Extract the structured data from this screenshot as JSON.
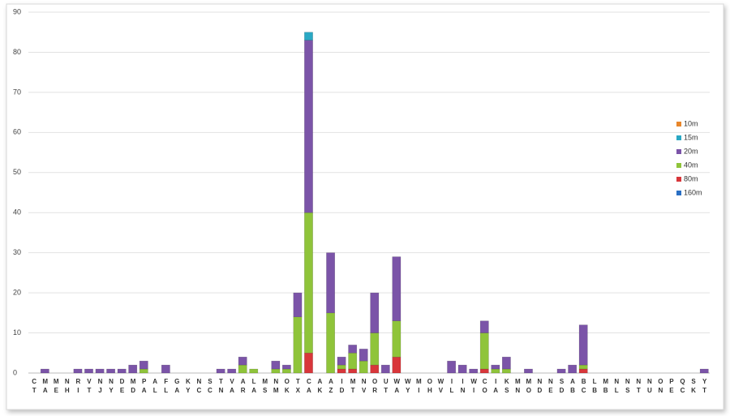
{
  "chart_data": {
    "type": "stacked-bar",
    "categories": [
      "CT",
      "MA",
      "ME",
      "NH",
      "RI",
      "VT",
      "NJ",
      "NY",
      "DE",
      "MD",
      "PA",
      "AL",
      "FL",
      "GA",
      "KY",
      "NC",
      "SC",
      "TN",
      "VA",
      "AR",
      "LA",
      "MS",
      "NM",
      "OK",
      "TX",
      "CA",
      "AK",
      "AZ",
      "ID",
      "MT",
      "NV",
      "OR",
      "UT",
      "WA",
      "WY",
      "MI",
      "OH",
      "WV",
      "IL",
      "IN",
      "WI",
      "CO",
      "IA",
      "KS",
      "MN",
      "MO",
      "ND",
      "NE",
      "SD",
      "AB",
      "BC",
      "LB",
      "MB",
      "NL",
      "NS",
      "NT",
      "NU",
      "ON",
      "PE",
      "QC",
      "SK",
      "YT"
    ],
    "series": [
      {
        "name": "10m",
        "color": "#e8862a",
        "values": [
          0,
          0,
          0,
          0,
          0,
          0,
          0,
          0,
          0,
          0,
          0,
          0,
          0,
          0,
          0,
          0,
          0,
          0,
          0,
          0,
          0,
          0,
          0,
          0,
          0,
          0,
          0,
          0,
          0,
          0,
          0,
          0,
          0,
          0,
          0,
          0,
          0,
          0,
          0,
          0,
          0,
          0,
          0,
          0,
          0,
          0,
          0,
          0,
          0,
          0,
          0,
          0,
          0,
          0,
          0,
          0,
          0,
          0,
          0,
          0,
          0,
          0
        ]
      },
      {
        "name": "15m",
        "color": "#2aa8c4",
        "values": [
          0,
          0,
          0,
          0,
          0,
          0,
          0,
          0,
          0,
          0,
          0,
          0,
          0,
          0,
          0,
          0,
          0,
          0,
          0,
          0,
          0,
          0,
          0,
          0,
          0,
          2,
          0,
          0,
          0,
          0,
          0,
          0,
          0,
          0,
          0,
          0,
          0,
          0,
          0,
          0,
          0,
          0,
          0,
          0,
          0,
          0,
          0,
          0,
          0,
          0,
          0,
          0,
          0,
          0,
          0,
          0,
          0,
          0,
          0,
          0,
          0,
          0
        ]
      },
      {
        "name": "20m",
        "color": "#7b54a8",
        "values": [
          0,
          1,
          0,
          0,
          1,
          1,
          1,
          1,
          1,
          2,
          2,
          0,
          2,
          0,
          0,
          0,
          0,
          1,
          1,
          2,
          0,
          0,
          2,
          1,
          6,
          43,
          0,
          15,
          2,
          2,
          3,
          10,
          2,
          16,
          0,
          0,
          0,
          0,
          3,
          2,
          1,
          3,
          1,
          3,
          0,
          1,
          0,
          0,
          1,
          2,
          10,
          0,
          0,
          0,
          0,
          0,
          0,
          0,
          0,
          0,
          0,
          1
        ]
      },
      {
        "name": "40m",
        "color": "#8fc43a",
        "values": [
          0,
          0,
          0,
          0,
          0,
          0,
          0,
          0,
          0,
          0,
          1,
          0,
          0,
          0,
          0,
          0,
          0,
          0,
          0,
          2,
          1,
          0,
          1,
          1,
          14,
          35,
          0,
          15,
          1,
          4,
          3,
          8,
          0,
          9,
          0,
          0,
          0,
          0,
          0,
          0,
          0,
          9,
          1,
          1,
          0,
          0,
          0,
          0,
          0,
          0,
          1,
          0,
          0,
          0,
          0,
          0,
          0,
          0,
          0,
          0,
          0,
          0
        ]
      },
      {
        "name": "80m",
        "color": "#d8363a",
        "values": [
          0,
          0,
          0,
          0,
          0,
          0,
          0,
          0,
          0,
          0,
          0,
          0,
          0,
          0,
          0,
          0,
          0,
          0,
          0,
          0,
          0,
          0,
          0,
          0,
          0,
          5,
          0,
          0,
          1,
          1,
          0,
          2,
          0,
          4,
          0,
          0,
          0,
          0,
          0,
          0,
          0,
          1,
          0,
          0,
          0,
          0,
          0,
          0,
          0,
          0,
          1,
          0,
          0,
          0,
          0,
          0,
          0,
          0,
          0,
          0,
          0,
          0
        ]
      },
      {
        "name": "160m",
        "color": "#2a6fc4",
        "values": [
          0,
          0,
          0,
          0,
          0,
          0,
          0,
          0,
          0,
          0,
          0,
          0,
          0,
          0,
          0,
          0,
          0,
          0,
          0,
          0,
          0,
          0,
          0,
          0,
          0,
          0,
          0,
          0,
          0,
          0,
          0,
          0,
          0,
          0,
          0,
          0,
          0,
          0,
          0,
          0,
          0,
          0,
          0,
          0,
          0,
          0,
          0,
          0,
          0,
          0,
          0,
          0,
          0,
          0,
          0,
          0,
          0,
          0,
          0,
          0,
          0,
          0
        ]
      }
    ],
    "ylim": [
      0,
      90
    ],
    "yticks": [
      0,
      10,
      20,
      30,
      40,
      50,
      60,
      70,
      80,
      90
    ],
    "grid": true,
    "legend": "right"
  }
}
